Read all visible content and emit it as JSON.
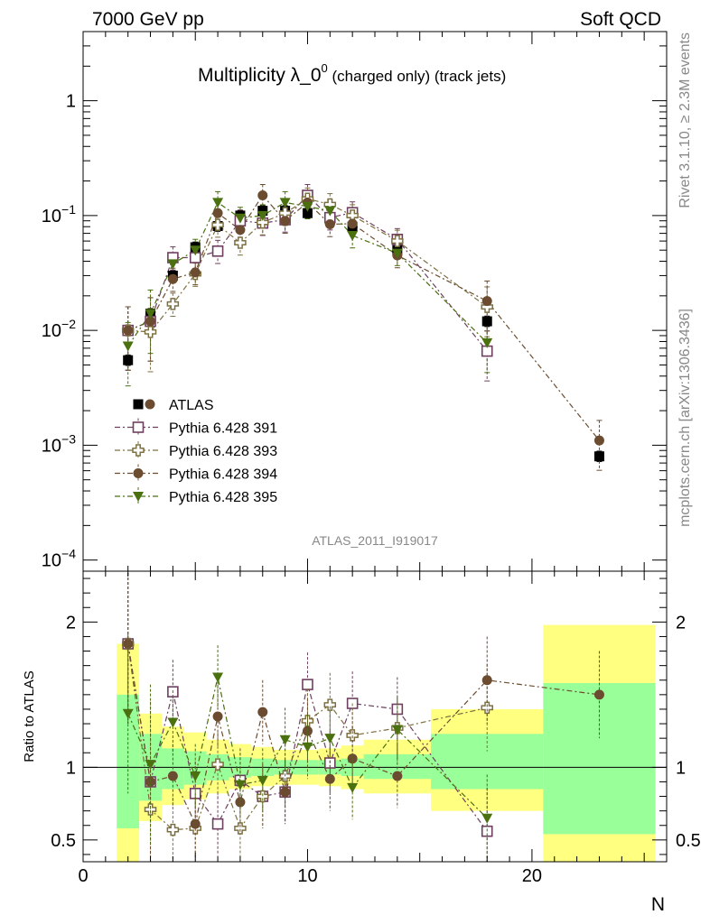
{
  "header": {
    "left": "7000 GeV pp",
    "right": "Soft QCD"
  },
  "side_labels": {
    "top": "Rivet 3.1.10, ≥ 2.3M events",
    "bottom": "mcplots.cern.ch [arXiv:1306.3436]"
  },
  "analysis_id": "ATLAS_2011_I919017",
  "chart_data": [
    {
      "type": "scatter",
      "panel": "main",
      "title": "Multiplicity λ_0⁰ (charged only) (track jets)",
      "title_main": "Multiplicity λ_0",
      "title_sup": "0",
      "title_tail": " (charged only) (track jets)",
      "xlabel": "N",
      "ylabel": "",
      "xlim": [
        0,
        26
      ],
      "ylim": [
        8e-05,
        4
      ],
      "yscale": "log",
      "x_ticks": [
        "0",
        "10",
        "20"
      ],
      "y_ticks": [
        {
          "base": "10",
          "exp": "−4",
          "v": 0.0001
        },
        {
          "base": "10",
          "exp": "−3",
          "v": 0.001
        },
        {
          "base": "10",
          "exp": "−2",
          "v": 0.01
        },
        {
          "base": "10",
          "exp": "−1",
          "v": 0.1
        },
        {
          "base": "1",
          "exp": "",
          "v": 1
        }
      ],
      "legend_position": "lower-left",
      "series": [
        {
          "name": "ATLAS",
          "color": "#000000",
          "marker": "square-filled",
          "x": [
            2,
            3,
            4,
            5,
            6,
            7,
            8,
            9,
            10,
            11,
            12,
            14,
            18,
            23
          ],
          "y": [
            0.0055,
            0.014,
            0.03,
            0.053,
            0.081,
            0.1,
            0.11,
            0.11,
            0.105,
            0.092,
            0.08,
            0.05,
            0.012,
            0.0008
          ]
        },
        {
          "name": "Pythia 6.428 391",
          "color": "#6f3f5f",
          "marker": "square-open",
          "x": [
            2,
            3,
            4,
            5,
            6,
            7,
            8,
            9,
            10,
            11,
            12,
            14,
            18
          ],
          "y": [
            0.01,
            0.012,
            0.043,
            0.043,
            0.049,
            0.09,
            0.086,
            0.092,
            0.15,
            0.096,
            0.106,
            0.062,
            0.0066
          ]
        },
        {
          "name": "Pythia 6.428 393",
          "color": "#7d7040",
          "marker": "cross-open",
          "x": [
            2,
            3,
            4,
            5,
            6,
            7,
            8,
            9,
            10,
            11,
            12,
            14,
            18
          ],
          "y": [
            0.01,
            0.0097,
            0.017,
            0.031,
            0.083,
            0.058,
            0.087,
            0.105,
            0.14,
            0.125,
            0.1,
            0.06,
            0.016
          ]
        },
        {
          "name": "Pythia 6.428 394",
          "color": "#6b4c30",
          "marker": "circle-filled",
          "x": [
            2,
            3,
            4,
            5,
            6,
            7,
            8,
            9,
            10,
            11,
            12,
            14,
            18,
            23
          ],
          "y": [
            0.01,
            0.012,
            0.028,
            0.032,
            0.105,
            0.075,
            0.15,
            0.09,
            0.13,
            0.084,
            0.085,
            0.045,
            0.018,
            0.0011
          ]
        },
        {
          "name": "Pythia 6.428 395",
          "color": "#4a7010",
          "marker": "triangle-down-filled",
          "x": [
            2,
            3,
            4,
            5,
            6,
            7,
            8,
            9,
            10,
            11,
            12,
            14,
            18
          ],
          "y": [
            0.0073,
            0.014,
            0.038,
            0.05,
            0.13,
            0.095,
            0.1,
            0.13,
            0.12,
            0.11,
            0.067,
            0.047,
            0.0078
          ]
        }
      ]
    },
    {
      "type": "scatter",
      "panel": "ratio",
      "ylabel": "Ratio to ATLAS",
      "xlabel": "N",
      "xlim": [
        0,
        26
      ],
      "ylim": [
        0.35,
        2.35
      ],
      "y_ticks": [
        "0.5",
        "1",
        "2"
      ],
      "x_ticks": [
        "0",
        "10",
        "20"
      ],
      "bands": [
        {
          "xlo": 1.5,
          "xhi": 2.5,
          "stat": [
            0.58,
            1.5
          ],
          "total": [
            0.3,
            1.85
          ]
        },
        {
          "xlo": 2.5,
          "xhi": 3.5,
          "stat": [
            0.77,
            1.23
          ],
          "total": [
            0.63,
            1.37
          ]
        },
        {
          "xlo": 3.5,
          "xhi": 4.5,
          "stat": [
            0.85,
            1.13
          ],
          "total": [
            0.74,
            1.28
          ]
        },
        {
          "xlo": 4.5,
          "xhi": 5.5,
          "stat": [
            0.88,
            1.11
          ],
          "total": [
            0.78,
            1.24
          ]
        },
        {
          "xlo": 5.5,
          "xhi": 6.5,
          "stat": [
            0.91,
            1.09
          ],
          "total": [
            0.82,
            1.19
          ]
        },
        {
          "xlo": 6.5,
          "xhi": 7.5,
          "stat": [
            0.93,
            1.07
          ],
          "total": [
            0.85,
            1.16
          ]
        },
        {
          "xlo": 7.5,
          "xhi": 8.5,
          "stat": [
            0.94,
            1.06
          ],
          "total": [
            0.87,
            1.14
          ]
        },
        {
          "xlo": 8.5,
          "xhi": 9.5,
          "stat": [
            0.95,
            1.05
          ],
          "total": [
            0.88,
            1.12
          ]
        },
        {
          "xlo": 9.5,
          "xhi": 10.5,
          "stat": [
            0.95,
            1.05
          ],
          "total": [
            0.88,
            1.12
          ]
        },
        {
          "xlo": 10.5,
          "xhi": 11.5,
          "stat": [
            0.95,
            1.05
          ],
          "total": [
            0.87,
            1.13
          ]
        },
        {
          "xlo": 11.5,
          "xhi": 12.5,
          "stat": [
            0.94,
            1.06
          ],
          "total": [
            0.85,
            1.15
          ]
        },
        {
          "xlo": 12.5,
          "xhi": 15.5,
          "stat": [
            0.92,
            1.09
          ],
          "total": [
            0.82,
            1.19
          ]
        },
        {
          "xlo": 15.5,
          "xhi": 20.5,
          "stat": [
            0.85,
            1.23
          ],
          "total": [
            0.7,
            1.4
          ]
        },
        {
          "xlo": 20.5,
          "xhi": 25.5,
          "stat": [
            0.54,
            1.58
          ],
          "total": [
            0.3,
            1.98
          ]
        }
      ],
      "reference_line": 1,
      "series": [
        {
          "name": "Pythia 6.428 391",
          "x": [
            2,
            3,
            4,
            5,
            6,
            7,
            8,
            9,
            10,
            11,
            12,
            14,
            18
          ],
          "y": [
            1.85,
            0.9,
            1.52,
            0.82,
            0.61,
            0.91,
            0.8,
            0.83,
            1.57,
            1.03,
            1.44,
            1.4,
            0.56
          ]
        },
        {
          "name": "Pythia 6.428 393",
          "x": [
            2,
            3,
            4,
            5,
            6,
            7,
            8,
            9,
            10,
            11,
            12,
            14,
            18
          ],
          "y": [
            1.85,
            0.71,
            0.57,
            0.58,
            1.02,
            0.58,
            0.8,
            0.94,
            1.32,
            1.43,
            1.22,
            1.27,
            1.41
          ]
        },
        {
          "name": "Pythia 6.428 394",
          "x": [
            2,
            3,
            4,
            5,
            6,
            7,
            8,
            9,
            10,
            11,
            12,
            14,
            18,
            23
          ],
          "y": [
            1.85,
            0.9,
            0.94,
            0.61,
            1.35,
            0.76,
            1.38,
            0.83,
            1.25,
            0.92,
            1.06,
            0.94,
            1.6,
            1.5
          ]
        },
        {
          "name": "Pythia 6.428 395",
          "x": [
            2,
            3,
            4,
            5,
            6,
            7,
            8,
            9,
            10,
            11,
            12,
            14,
            18
          ],
          "y": [
            1.37,
            1.02,
            1.31,
            0.94,
            1.62,
            0.88,
            0.91,
            1.19,
            1.14,
            1.2,
            0.86,
            1.26,
            0.65
          ]
        }
      ]
    }
  ]
}
